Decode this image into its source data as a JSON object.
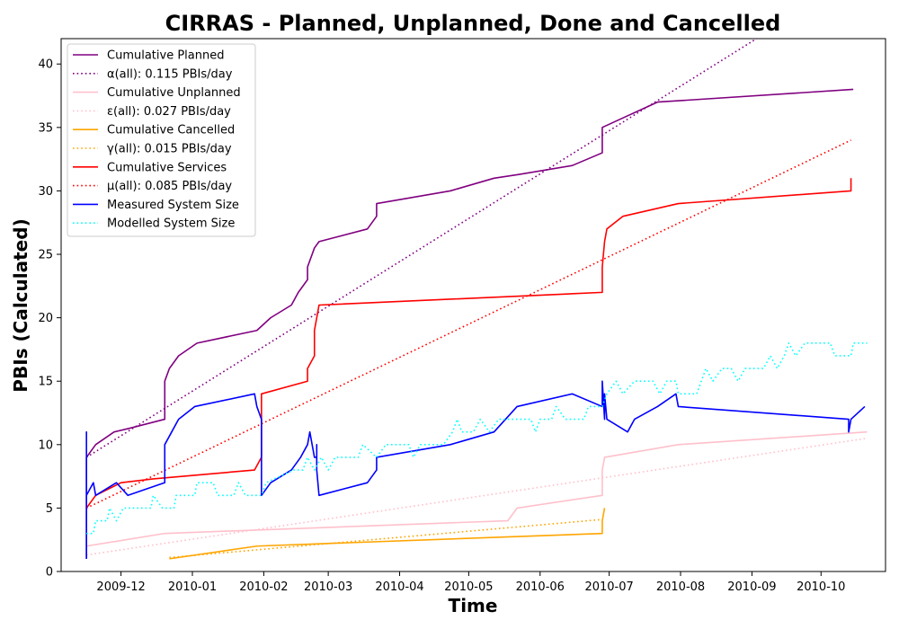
{
  "chart_data": {
    "type": "line",
    "title": "CIRRAS - Planned, Unplanned, Done  and Cancelled",
    "xlabel": "Time",
    "ylabel": "PBIs (Calculated)",
    "x_axis_type": "date",
    "xlim": [
      "2009-11-05",
      "2010-10-29"
    ],
    "ylim": [
      0,
      42
    ],
    "x_ticks": [
      "2009-12-01",
      "2010-01-01",
      "2010-02-01",
      "2010-03-01",
      "2010-04-01",
      "2010-05-01",
      "2010-06-01",
      "2010-07-01",
      "2010-08-01",
      "2010-09-01",
      "2010-10-01"
    ],
    "x_tick_labels": [
      "2009-12",
      "2010-01",
      "2010-02",
      "2010-03",
      "2010-04",
      "2010-05",
      "2010-06",
      "2010-07",
      "2010-08",
      "2010-09",
      "2010-10"
    ],
    "y_ticks": [
      0,
      5,
      10,
      15,
      20,
      25,
      30,
      35,
      40
    ],
    "grid": false,
    "legend_position": "top-left",
    "series": [
      {
        "name": "Cumulative Planned",
        "color": "#800080",
        "style": "solid",
        "points": [
          [
            "2009-11-16",
            1
          ],
          [
            "2009-11-16",
            9
          ],
          [
            "2009-11-20",
            10
          ],
          [
            "2009-11-28",
            11
          ],
          [
            "2009-12-05",
            11.3
          ],
          [
            "2009-12-20",
            12
          ],
          [
            "2009-12-20",
            15
          ],
          [
            "2009-12-22",
            16
          ],
          [
            "2009-12-26",
            17
          ],
          [
            "2010-01-03",
            18
          ],
          [
            "2010-01-29",
            19
          ],
          [
            "2010-02-04",
            20
          ],
          [
            "2010-02-13",
            21
          ],
          [
            "2010-02-16",
            22
          ],
          [
            "2010-02-20",
            23
          ],
          [
            "2010-02-20",
            24
          ],
          [
            "2010-02-23",
            25.5
          ],
          [
            "2010-02-25",
            26
          ],
          [
            "2010-03-18",
            27
          ],
          [
            "2010-03-22",
            28
          ],
          [
            "2010-03-22",
            29
          ],
          [
            "2010-04-23",
            30
          ],
          [
            "2010-05-12",
            31
          ],
          [
            "2010-05-23",
            31.3
          ],
          [
            "2010-06-15",
            32
          ],
          [
            "2010-06-28",
            33
          ],
          [
            "2010-06-28",
            35
          ],
          [
            "2010-07-10",
            36
          ],
          [
            "2010-07-22",
            37
          ],
          [
            "2010-10-15",
            38
          ]
        ]
      },
      {
        "name": "α(all): 0.115 PBIs/day",
        "color": "#800080",
        "style": "dotted",
        "points": [
          [
            "2009-11-16",
            9
          ],
          [
            "2010-09-03",
            42
          ]
        ]
      },
      {
        "name": "Cumulative Unplanned",
        "color": "#ffc0cb",
        "style": "solid",
        "points": [
          [
            "2009-11-16",
            2
          ],
          [
            "2009-12-20",
            3
          ],
          [
            "2010-05-18",
            4
          ],
          [
            "2010-05-22",
            5
          ],
          [
            "2010-06-28",
            6
          ],
          [
            "2010-06-28",
            8
          ],
          [
            "2010-06-29",
            9
          ],
          [
            "2010-07-31",
            10
          ],
          [
            "2010-10-21",
            11
          ]
        ]
      },
      {
        "name": "ε(all): 0.027 PBIs/day",
        "color": "#ffc0cb",
        "style": "dotted",
        "points": [
          [
            "2009-11-16",
            1.3
          ],
          [
            "2010-10-21",
            10.5
          ]
        ]
      },
      {
        "name": "Cumulative Cancelled",
        "color": "#ffa500",
        "style": "solid",
        "points": [
          [
            "2009-12-22",
            1
          ],
          [
            "2010-01-29",
            2
          ],
          [
            "2010-06-28",
            3
          ],
          [
            "2010-06-28",
            4
          ],
          [
            "2010-06-29",
            5
          ]
        ]
      },
      {
        "name": "γ(all): 0.015 PBIs/day",
        "color": "#ffa500",
        "style": "dotted",
        "points": [
          [
            "2009-12-22",
            1.1
          ],
          [
            "2010-06-28",
            4.1
          ]
        ]
      },
      {
        "name": "Cumulative Services",
        "color": "#ff0000",
        "style": "solid",
        "points": [
          [
            "2009-11-16",
            5
          ],
          [
            "2009-11-20",
            6
          ],
          [
            "2009-12-01",
            7
          ],
          [
            "2009-12-15",
            7.3
          ],
          [
            "2010-01-28",
            8
          ],
          [
            "2010-01-31",
            9
          ],
          [
            "2010-01-31",
            14
          ],
          [
            "2010-02-20",
            15
          ],
          [
            "2010-02-20",
            16
          ],
          [
            "2010-02-23",
            17
          ],
          [
            "2010-02-23",
            19
          ],
          [
            "2010-02-24",
            20
          ],
          [
            "2010-02-25",
            21
          ],
          [
            "2010-06-28",
            22
          ],
          [
            "2010-06-28",
            24
          ],
          [
            "2010-06-29",
            26
          ],
          [
            "2010-06-30",
            27
          ],
          [
            "2010-07-07",
            28
          ],
          [
            "2010-07-31",
            29
          ],
          [
            "2010-10-14",
            30
          ],
          [
            "2010-10-14",
            31
          ]
        ]
      },
      {
        "name": "μ(all): 0.085 PBIs/day",
        "color": "#ff0000",
        "style": "dotted",
        "points": [
          [
            "2009-11-16",
            5
          ],
          [
            "2010-10-14",
            34
          ]
        ]
      },
      {
        "name": "Measured System Size",
        "color": "#0000ff",
        "style": "solid",
        "points": [
          [
            "2009-11-16",
            1
          ],
          [
            "2009-11-16",
            11
          ],
          [
            "2009-11-16",
            6
          ],
          [
            "2009-11-19",
            7
          ],
          [
            "2009-11-20",
            6
          ],
          [
            "2009-11-29",
            7
          ],
          [
            "2009-12-04",
            6
          ],
          [
            "2009-12-20",
            7
          ],
          [
            "2009-12-20",
            9
          ],
          [
            "2009-12-20",
            10
          ],
          [
            "2009-12-23",
            11
          ],
          [
            "2009-12-26",
            12
          ],
          [
            "2010-01-02",
            13
          ],
          [
            "2010-01-28",
            14
          ],
          [
            "2010-01-29",
            13
          ],
          [
            "2010-01-31",
            12
          ],
          [
            "2010-01-31",
            6
          ],
          [
            "2010-02-04",
            7
          ],
          [
            "2010-02-13",
            8
          ],
          [
            "2010-02-17",
            9
          ],
          [
            "2010-02-20",
            10
          ],
          [
            "2010-02-21",
            11
          ],
          [
            "2010-02-22",
            10
          ],
          [
            "2010-02-23",
            9
          ],
          [
            "2010-02-24",
            9
          ],
          [
            "2010-02-24",
            10
          ],
          [
            "2010-02-24",
            8
          ],
          [
            "2010-02-25",
            6
          ],
          [
            "2010-03-18",
            7
          ],
          [
            "2010-03-22",
            8
          ],
          [
            "2010-03-22",
            9
          ],
          [
            "2010-04-23",
            10
          ],
          [
            "2010-05-12",
            11
          ],
          [
            "2010-05-22",
            13
          ],
          [
            "2010-06-15",
            14
          ],
          [
            "2010-06-28",
            13
          ],
          [
            "2010-06-28",
            15
          ],
          [
            "2010-06-29",
            12
          ],
          [
            "2010-06-29",
            14
          ],
          [
            "2010-06-30",
            12
          ],
          [
            "2010-07-09",
            11
          ],
          [
            "2010-07-12",
            12
          ],
          [
            "2010-07-22",
            13
          ],
          [
            "2010-07-30",
            14
          ],
          [
            "2010-07-31",
            13
          ],
          [
            "2010-10-13",
            12
          ],
          [
            "2010-10-13",
            11
          ],
          [
            "2010-10-14",
            12
          ],
          [
            "2010-10-20",
            13
          ]
        ]
      },
      {
        "name": "Modelled System Size",
        "color": "#00ffff",
        "style": "dotted",
        "points": [
          [
            "2009-11-16",
            3
          ],
          [
            "2009-11-19",
            3
          ],
          [
            "2009-11-20",
            4
          ],
          [
            "2009-11-25",
            4
          ],
          [
            "2009-11-26",
            5
          ],
          [
            "2009-11-29",
            4
          ],
          [
            "2009-12-02",
            5
          ],
          [
            "2009-12-14",
            5
          ],
          [
            "2009-12-15",
            6
          ],
          [
            "2009-12-19",
            5
          ],
          [
            "2009-12-24",
            5
          ],
          [
            "2009-12-25",
            6
          ],
          [
            "2010-01-02",
            6
          ],
          [
            "2010-01-03",
            7
          ],
          [
            "2010-01-10",
            7
          ],
          [
            "2010-01-12",
            6
          ],
          [
            "2010-01-19",
            6
          ],
          [
            "2010-01-21",
            7
          ],
          [
            "2010-01-24",
            6
          ],
          [
            "2010-01-31",
            6
          ],
          [
            "2010-02-02",
            7
          ],
          [
            "2010-02-14",
            8
          ],
          [
            "2010-02-18",
            8
          ],
          [
            "2010-02-20",
            9
          ],
          [
            "2010-02-23",
            8
          ],
          [
            "2010-02-26",
            9
          ],
          [
            "2010-03-01",
            8
          ],
          [
            "2010-03-04",
            9
          ],
          [
            "2010-03-14",
            9
          ],
          [
            "2010-03-16",
            10
          ],
          [
            "2010-03-22",
            9
          ],
          [
            "2010-03-26",
            10
          ],
          [
            "2010-04-05",
            10
          ],
          [
            "2010-04-07",
            9
          ],
          [
            "2010-04-10",
            10
          ],
          [
            "2010-04-20",
            10
          ],
          [
            "2010-04-24",
            11
          ],
          [
            "2010-04-26",
            12
          ],
          [
            "2010-04-28",
            11
          ],
          [
            "2010-05-03",
            11
          ],
          [
            "2010-05-06",
            12
          ],
          [
            "2010-05-10",
            11
          ],
          [
            "2010-05-14",
            12
          ],
          [
            "2010-05-28",
            12
          ],
          [
            "2010-05-30",
            11
          ],
          [
            "2010-06-01",
            12
          ],
          [
            "2010-06-06",
            12
          ],
          [
            "2010-06-08",
            13
          ],
          [
            "2010-06-12",
            12
          ],
          [
            "2010-06-20",
            12
          ],
          [
            "2010-06-22",
            13
          ],
          [
            "2010-06-28",
            13
          ],
          [
            "2010-06-30",
            14
          ],
          [
            "2010-07-04",
            15
          ],
          [
            "2010-07-07",
            14
          ],
          [
            "2010-07-12",
            15
          ],
          [
            "2010-07-20",
            15
          ],
          [
            "2010-07-23",
            14
          ],
          [
            "2010-07-26",
            15
          ],
          [
            "2010-07-30",
            15
          ],
          [
            "2010-07-31",
            14
          ],
          [
            "2010-08-08",
            14
          ],
          [
            "2010-08-10",
            15
          ],
          [
            "2010-08-12",
            16
          ],
          [
            "2010-08-15",
            15
          ],
          [
            "2010-08-19",
            16
          ],
          [
            "2010-08-23",
            16
          ],
          [
            "2010-08-26",
            15
          ],
          [
            "2010-08-29",
            16
          ],
          [
            "2010-09-06",
            16
          ],
          [
            "2010-09-09",
            17
          ],
          [
            "2010-09-12",
            16
          ],
          [
            "2010-09-15",
            17
          ],
          [
            "2010-09-17",
            18
          ],
          [
            "2010-09-20",
            17
          ],
          [
            "2010-09-24",
            18
          ],
          [
            "2010-10-05",
            18
          ],
          [
            "2010-10-07",
            17
          ],
          [
            "2010-10-14",
            17
          ],
          [
            "2010-10-15",
            18
          ],
          [
            "2010-10-21",
            18
          ]
        ]
      }
    ]
  }
}
